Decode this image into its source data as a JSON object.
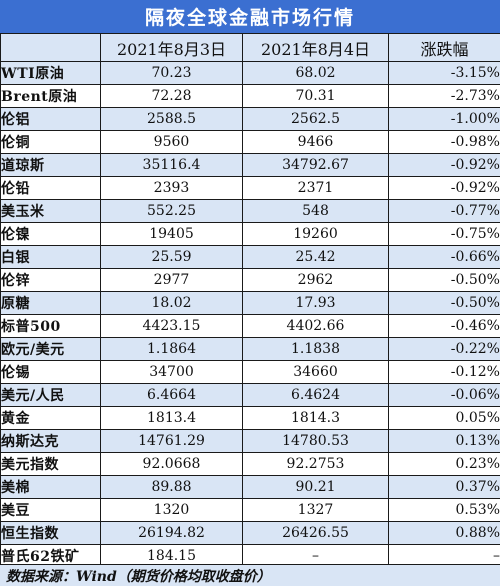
{
  "title": "隔夜全球金融市场行情",
  "headers": [
    "",
    "2021年8月3日",
    "2021年8月4日",
    "涨跌幅"
  ],
  "rows": [
    {
      "name": "WTI原油",
      "d1": "70.23",
      "d2": "68.02",
      "chg": "-3.15%"
    },
    {
      "name": "Brent原油",
      "d1": "72.28",
      "d2": "70.31",
      "chg": "-2.73%"
    },
    {
      "name": "伦铝",
      "d1": "2588.5",
      "d2": "2562.5",
      "chg": "-1.00%"
    },
    {
      "name": "伦铜",
      "d1": "9560",
      "d2": "9466",
      "chg": "-0.98%"
    },
    {
      "name": "道琼斯",
      "d1": "35116.4",
      "d2": "34792.67",
      "chg": "-0.92%"
    },
    {
      "name": "伦铅",
      "d1": "2393",
      "d2": "2371",
      "chg": "-0.92%"
    },
    {
      "name": "美玉米",
      "d1": "552.25",
      "d2": "548",
      "chg": "-0.77%"
    },
    {
      "name": "伦镍",
      "d1": "19405",
      "d2": "19260",
      "chg": "-0.75%"
    },
    {
      "name": "白银",
      "d1": "25.59",
      "d2": "25.42",
      "chg": "-0.66%"
    },
    {
      "name": "伦锌",
      "d1": "2977",
      "d2": "2962",
      "chg": "-0.50%"
    },
    {
      "name": "原糖",
      "d1": "18.02",
      "d2": "17.93",
      "chg": "-0.50%"
    },
    {
      "name": "标普500",
      "d1": "4423.15",
      "d2": "4402.66",
      "chg": "-0.46%"
    },
    {
      "name": "欧元/美元",
      "d1": "1.1864",
      "d2": "1.1838",
      "chg": "-0.22%"
    },
    {
      "name": "伦锡",
      "d1": "34700",
      "d2": "34660",
      "chg": "-0.12%"
    },
    {
      "name": "美元/人民",
      "d1": "6.4664",
      "d2": "6.4624",
      "chg": "-0.06%"
    },
    {
      "name": "黄金",
      "d1": "1813.4",
      "d2": "1814.3",
      "chg": "0.05%"
    },
    {
      "name": "纳斯达克",
      "d1": "14761.29",
      "d2": "14780.53",
      "chg": "0.13%"
    },
    {
      "name": "美元指数",
      "d1": "92.0668",
      "d2": "92.2753",
      "chg": "0.23%"
    },
    {
      "name": "美棉",
      "d1": "89.88",
      "d2": "90.21",
      "chg": "0.37%"
    },
    {
      "name": "美豆",
      "d1": "1320",
      "d2": "1327",
      "chg": "0.53%"
    },
    {
      "name": "恒生指数",
      "d1": "26194.82",
      "d2": "26426.55",
      "chg": "0.88%"
    },
    {
      "name": "普氏62铁矿",
      "d1": "184.15",
      "d2": "–",
      "chg": "–"
    }
  ],
  "footer": "数据来源：Wind（期货价格均取收盘价）"
}
